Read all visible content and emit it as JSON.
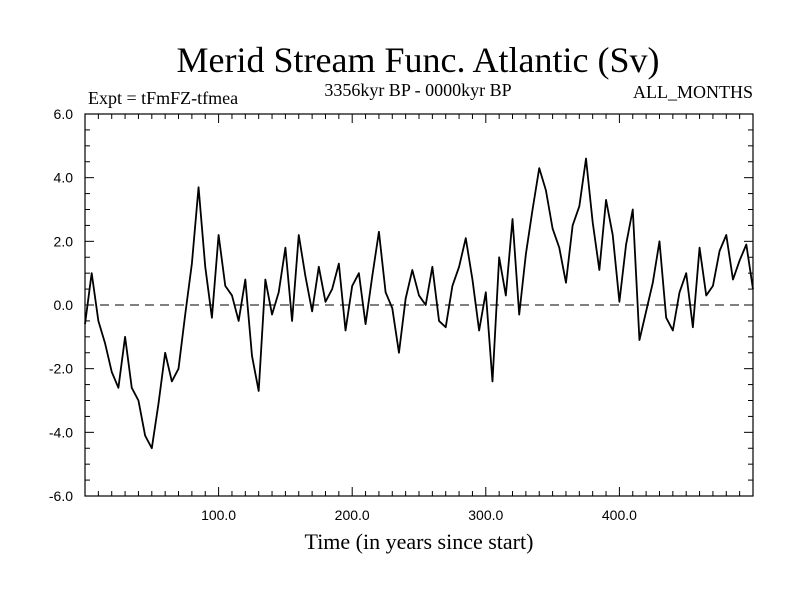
{
  "chart_data": {
    "type": "line",
    "title": "Merid Stream Func. Atlantic (Sv)",
    "subtitle_left": "Expt = tFmFZ-tfmea",
    "subtitle_center": "3356kyr BP - 0000kyr BP",
    "subtitle_right": "ALL_MONTHS",
    "xlabel": "Time (in years since start)",
    "ylabel": "",
    "xlim": [
      0,
      500
    ],
    "ylim": [
      -6,
      6
    ],
    "x_ticks": [
      100,
      200,
      300,
      400
    ],
    "x_tick_labels": [
      "100.0",
      "200.0",
      "300.0",
      "400.0"
    ],
    "y_ticks": [
      -6,
      -4,
      -2,
      0,
      2,
      4,
      6
    ],
    "y_tick_labels": [
      "-6.0",
      "-4.0",
      "-2.0",
      "0.0",
      "2.0",
      "4.0",
      "6.0"
    ],
    "reference_line": 0,
    "grid": false,
    "series": [
      {
        "name": "Merid Stream Func. Atlantic",
        "x_start": 0,
        "x_step": 5,
        "values": [
          -0.6,
          1.0,
          -0.5,
          -1.2,
          -2.1,
          -2.6,
          -1.0,
          -2.6,
          -3.0,
          -4.1,
          -4.5,
          -3.1,
          -1.5,
          -2.4,
          -2.0,
          -0.3,
          1.3,
          3.7,
          1.2,
          -0.4,
          2.2,
          0.6,
          0.3,
          -0.5,
          0.8,
          -1.6,
          -2.7,
          0.8,
          -0.3,
          0.4,
          1.8,
          -0.5,
          2.2,
          0.9,
          -0.2,
          1.2,
          0.1,
          0.5,
          1.3,
          -0.8,
          0.6,
          1.0,
          -0.6,
          0.9,
          2.3,
          0.4,
          -0.1,
          -1.5,
          0.2,
          1.1,
          0.3,
          0.0,
          1.2,
          -0.5,
          -0.7,
          0.6,
          1.2,
          2.1,
          0.8,
          -0.8,
          0.4,
          -2.4,
          1.5,
          0.3,
          2.7,
          -0.3,
          1.6,
          3.0,
          4.3,
          3.6,
          2.4,
          1.8,
          0.7,
          2.5,
          3.1,
          4.6,
          2.6,
          1.1,
          3.3,
          2.2,
          0.1,
          1.9,
          3.0,
          -1.1,
          -0.2,
          0.7,
          2.0,
          -0.4,
          -0.8,
          0.4,
          1.0,
          -0.7,
          1.8,
          0.3,
          0.6,
          1.7,
          2.2,
          0.8,
          1.4,
          1.9,
          0.5
        ]
      }
    ]
  }
}
